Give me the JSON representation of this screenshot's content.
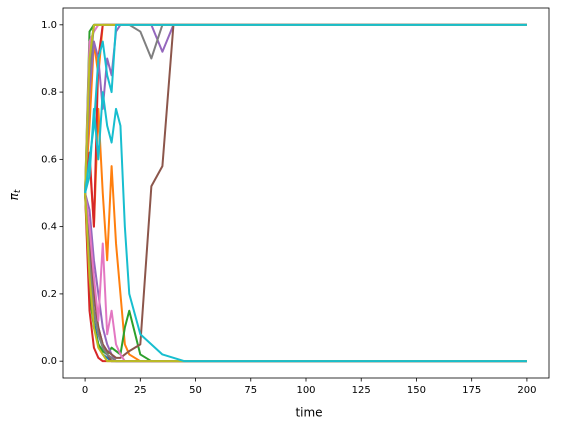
{
  "chart_data": {
    "type": "line",
    "xlabel": "time",
    "ylabel": "π",
    "ylabel_subscript": "t",
    "xlim": [
      -10,
      210
    ],
    "xticks": [
      0,
      25,
      50,
      75,
      100,
      125,
      150,
      175,
      200
    ],
    "ylim": [
      -0.05,
      1.05
    ],
    "yticks": [
      {
        "value": 0,
        "label": "0.0"
      },
      {
        "value": 0.2,
        "label": "0.2"
      },
      {
        "value": 0.4,
        "label": "0.4"
      },
      {
        "value": 0.6,
        "label": "0.6"
      },
      {
        "value": 0.8,
        "label": "0.8"
      },
      {
        "value": 1,
        "label": "1.0"
      }
    ],
    "grid": false,
    "x": [
      0,
      2,
      4,
      6,
      8,
      10,
      12,
      14,
      16,
      18,
      20,
      25,
      30,
      35,
      40,
      45,
      200
    ],
    "series": [
      {
        "color": "#1f77b4",
        "values": [
          0.5,
          0.9,
          1,
          1,
          1,
          1,
          1,
          1,
          1,
          1,
          1,
          1,
          1,
          1,
          1,
          1,
          1
        ]
      },
      {
        "color": "#1f77b4",
        "values": [
          0.5,
          0.3,
          0.12,
          0.05,
          0.02,
          0.01,
          0,
          0,
          0,
          0,
          0,
          0,
          0,
          0,
          0,
          0,
          0
        ]
      },
      {
        "color": "#ff7f0e",
        "values": [
          0.5,
          0.7,
          0.95,
          0.85,
          1,
          1,
          1,
          1,
          1,
          1,
          1,
          1,
          1,
          1,
          1,
          1,
          1
        ]
      },
      {
        "color": "#ff7f0e",
        "values": [
          0.5,
          0.6,
          0.4,
          0.75,
          0.5,
          0.3,
          0.58,
          0.35,
          0.2,
          0.05,
          0.02,
          0,
          0,
          0,
          0,
          0,
          0
        ]
      },
      {
        "color": "#2ca02c",
        "values": [
          0.5,
          0.98,
          1,
          1,
          1,
          1,
          1,
          1,
          1,
          1,
          1,
          1,
          1,
          1,
          1,
          1,
          1
        ]
      },
      {
        "color": "#2ca02c",
        "values": [
          0.5,
          0.2,
          0.1,
          0.05,
          0.03,
          0.02,
          0.04,
          0.03,
          0.02,
          0.1,
          0.15,
          0.02,
          0,
          0,
          0,
          0,
          0
        ]
      },
      {
        "color": "#d62728",
        "values": [
          0.5,
          0.62,
          0.4,
          0.9,
          1,
          1,
          1,
          1,
          1,
          1,
          1,
          1,
          1,
          1,
          1,
          1,
          1
        ]
      },
      {
        "color": "#d62728",
        "values": [
          0.5,
          0.15,
          0.04,
          0.01,
          0,
          0,
          0,
          0,
          0,
          0,
          0,
          0,
          0,
          0,
          0,
          0,
          0
        ]
      },
      {
        "color": "#9467bd",
        "values": [
          0.5,
          0.8,
          0.95,
          0.9,
          0.75,
          0.9,
          0.85,
          0.98,
          1,
          1,
          1,
          1,
          1,
          0.92,
          1,
          1,
          1
        ]
      },
      {
        "color": "#9467bd",
        "values": [
          0.5,
          0.45,
          0.3,
          0.2,
          0.1,
          0.05,
          0.02,
          0,
          0,
          0,
          0,
          0,
          0,
          0,
          0,
          0,
          0
        ]
      },
      {
        "color": "#8c564b",
        "values": [
          0.5,
          0.3,
          0.15,
          0.1,
          0.05,
          0.03,
          0.02,
          0.01,
          0.01,
          0.02,
          0.03,
          0.05,
          0.52,
          0.58,
          1,
          1,
          1
        ]
      },
      {
        "color": "#8c564b",
        "values": [
          0.5,
          0.35,
          0.2,
          0.1,
          0.05,
          0.02,
          0,
          0,
          0,
          0,
          0,
          0,
          0,
          0,
          0,
          0,
          0
        ]
      },
      {
        "color": "#e377c2",
        "values": [
          0.5,
          0.95,
          0.98,
          1,
          1,
          1,
          1,
          1,
          1,
          1,
          1,
          1,
          1,
          1,
          1,
          1,
          1
        ]
      },
      {
        "color": "#e377c2",
        "values": [
          0.5,
          0.4,
          0.25,
          0.12,
          0.35,
          0.08,
          0.15,
          0.05,
          0.02,
          0,
          0,
          0,
          0,
          0,
          0,
          0,
          0
        ]
      },
      {
        "color": "#7f7f7f",
        "values": [
          0.5,
          0.85,
          1,
          1,
          1,
          1,
          1,
          1,
          1,
          1,
          1,
          0.98,
          0.9,
          1,
          1,
          1,
          1
        ]
      },
      {
        "color": "#7f7f7f",
        "values": [
          0.5,
          0.3,
          0.15,
          0.08,
          0.04,
          0.02,
          0.01,
          0,
          0,
          0,
          0,
          0,
          0,
          0,
          0,
          0,
          0
        ]
      },
      {
        "color": "#bcbd22",
        "values": [
          0.5,
          0.9,
          1,
          1,
          1,
          1,
          1,
          1,
          1,
          1,
          1,
          1,
          1,
          1,
          1,
          1,
          1
        ]
      },
      {
        "color": "#bcbd22",
        "values": [
          0.5,
          0.25,
          0.1,
          0.04,
          0.02,
          0,
          0,
          0,
          0,
          0,
          0,
          0,
          0,
          0,
          0,
          0,
          0
        ]
      },
      {
        "color": "#17becf",
        "values": [
          0.5,
          0.6,
          0.7,
          0.9,
          0.95,
          0.85,
          0.8,
          1,
          1,
          1,
          1,
          1,
          1,
          1,
          1,
          1,
          1
        ]
      },
      {
        "color": "#17becf",
        "values": [
          0.5,
          0.55,
          0.75,
          0.6,
          0.8,
          0.7,
          0.65,
          0.75,
          0.7,
          0.4,
          0.2,
          0.08,
          0.05,
          0.02,
          0.01,
          0,
          0
        ]
      }
    ]
  }
}
